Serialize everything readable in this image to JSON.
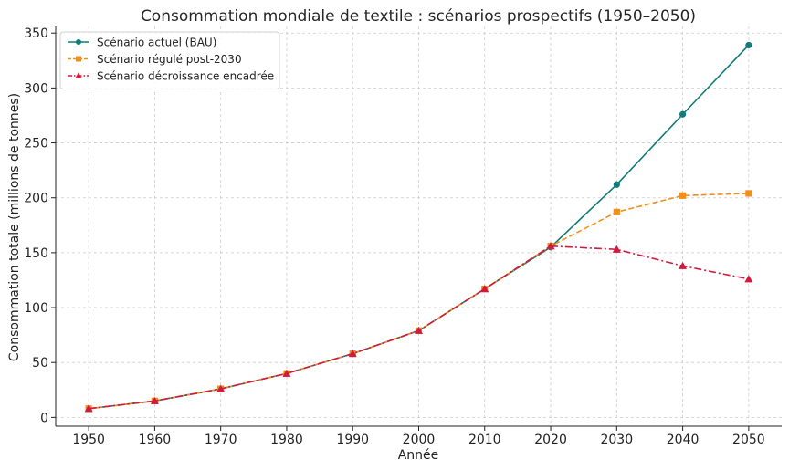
{
  "chart_data": {
    "type": "line",
    "title": "Consommation mondiale de textile : scénarios prospectifs (1950–2050)",
    "xlabel": "Année",
    "ylabel": "Consommation totale (millions de tonnes)",
    "x": [
      1950,
      1960,
      1970,
      1980,
      1990,
      2000,
      2010,
      2020,
      2030,
      2040,
      2050
    ],
    "xlim": [
      1945,
      2055
    ],
    "ylim": [
      -8,
      356
    ],
    "xticks": [
      1950,
      1960,
      1970,
      1980,
      1990,
      2000,
      2010,
      2020,
      2030,
      2040,
      2050
    ],
    "yticks": [
      0,
      50,
      100,
      150,
      200,
      250,
      300,
      350
    ],
    "grid": true,
    "legend_position": "top-left",
    "series": [
      {
        "name": "Scénario actuel (BAU)",
        "color": "#117a7a",
        "marker": "circle",
        "dash": "solid",
        "values": [
          8,
          15,
          26,
          40,
          58,
          79,
          117,
          155,
          212,
          276,
          339
        ]
      },
      {
        "name": "Scénario régulé post-2030",
        "color": "#f28e1c",
        "marker": "square",
        "dash": "dashed",
        "values": [
          8,
          15,
          26,
          40,
          58,
          79,
          117,
          156,
          187,
          202,
          204
        ]
      },
      {
        "name": "Scénario décroissance encadrée",
        "color": "#d11a3c",
        "marker": "triangle",
        "dash": "dashdot",
        "values": [
          8,
          15,
          26,
          40,
          58,
          79,
          117,
          156,
          153,
          138,
          126
        ]
      }
    ]
  }
}
